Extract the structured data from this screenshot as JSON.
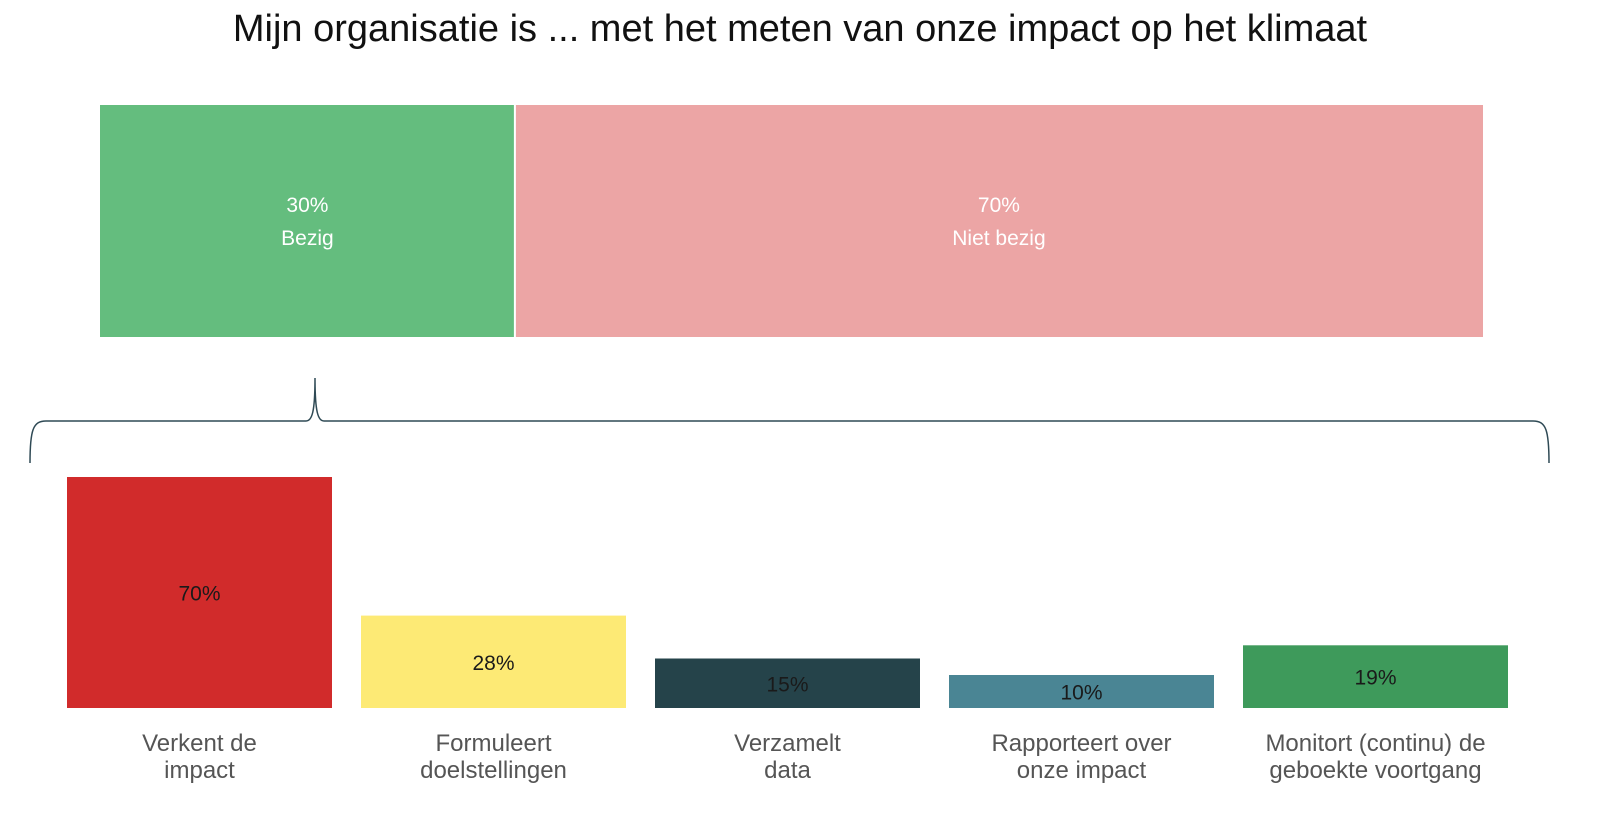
{
  "title": "Mijn organisatie is ... met het meten van onze impact op het klimaat",
  "chart_data": [
    {
      "type": "bar",
      "orientation": "horizontal-stacked",
      "title": "Mijn organisatie is ... met het meten van onze impact op het klimaat",
      "unit": "%",
      "segments": [
        {
          "label": "Bezig",
          "value": 30,
          "value_label": "30%",
          "color": "#64bd7e"
        },
        {
          "label": "Niet bezig",
          "value": 70,
          "value_label": "70%",
          "color": "#eca5a5"
        }
      ]
    },
    {
      "type": "bar",
      "orientation": "vertical",
      "unit": "%",
      "categories": [
        [
          "Verkent de",
          "impact"
        ],
        [
          "Formuleert",
          "doelstellingen"
        ],
        [
          "Verzamelt",
          "data"
        ],
        [
          "Rapporteert over",
          "onze impact"
        ],
        [
          "Monitort (continu) de",
          "geboekte voortgang"
        ]
      ],
      "values": [
        70,
        28,
        15,
        10,
        19
      ],
      "value_labels": [
        "70%",
        "28%",
        "15%",
        "10%",
        "19%"
      ],
      "colors": [
        "#d12b2b",
        "#fdea75",
        "#25434a",
        "#4a8594",
        "#3e9a5b"
      ]
    }
  ]
}
